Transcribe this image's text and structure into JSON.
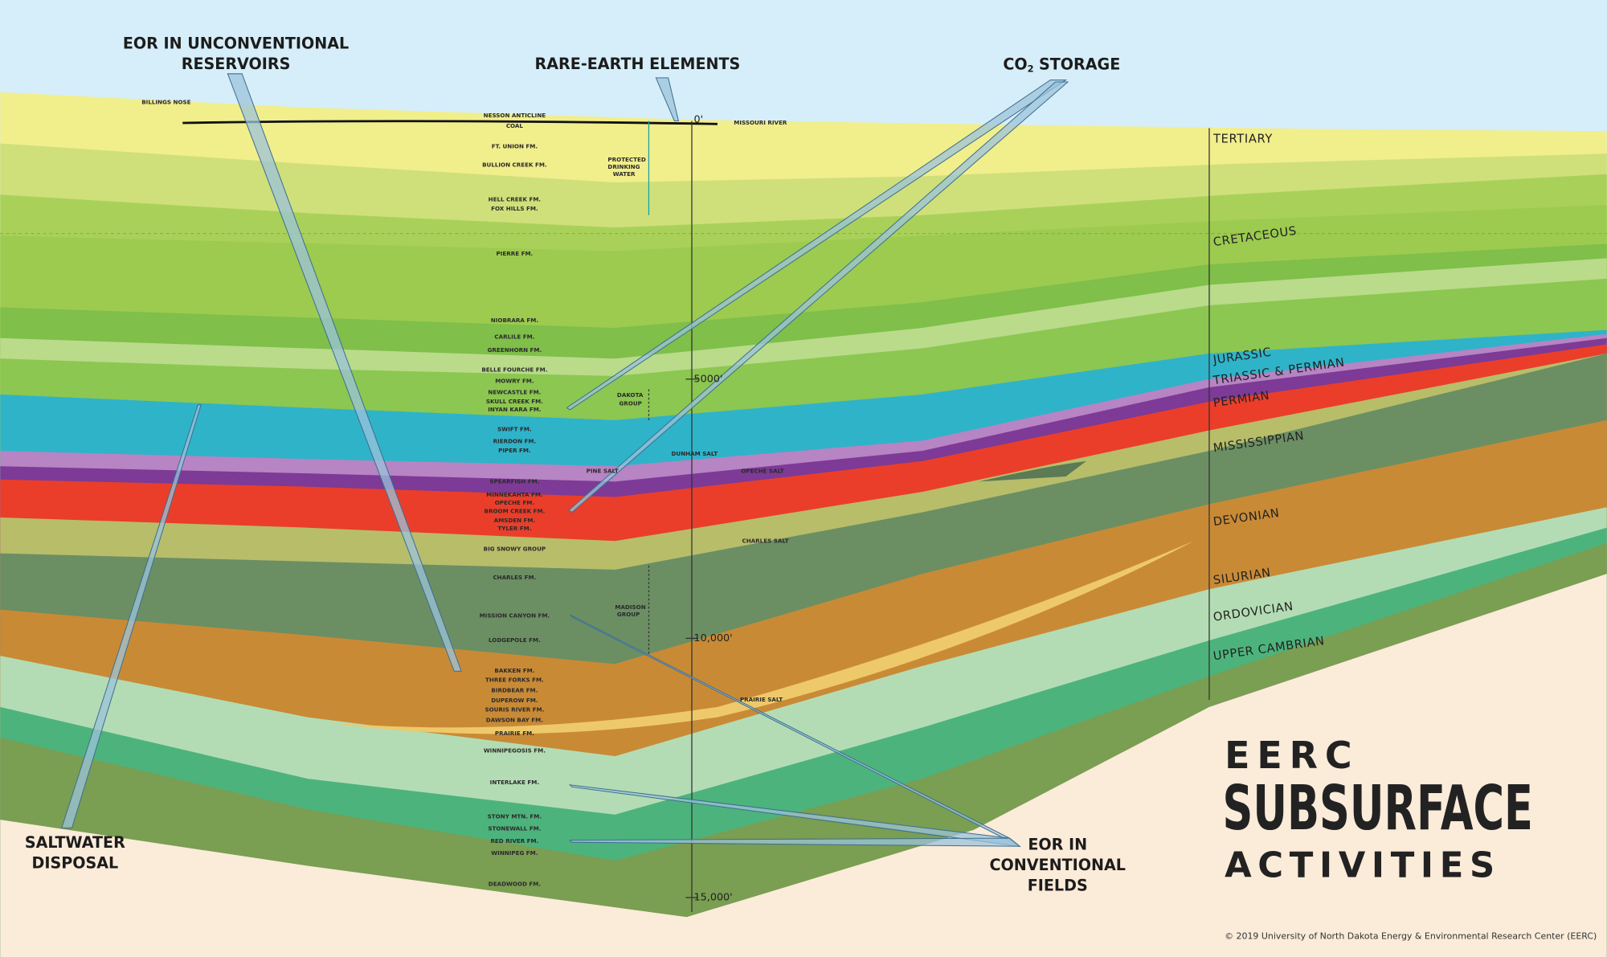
{
  "callouts": {
    "eor_unconventional": [
      "EOR IN UNCONVENTIONAL",
      "RESERVOIRS"
    ],
    "rare_earth": "RARE-EARTH ELEMENTS",
    "co2_storage": {
      "prefix": "CO",
      "subscript": "2",
      "suffix": "STORAGE"
    },
    "saltwater_disposal": [
      "SALTWATER",
      "DISPOSAL"
    ],
    "eor_conventional": [
      "EOR IN",
      "CONVENTIONAL",
      "FIELDS"
    ]
  },
  "formations": [
    "NESSON ANTICLINE",
    "COAL",
    "FT. UNION FM.",
    "BULLION CREEK FM.",
    "HELL CREEK FM.",
    "FOX HILLS FM.",
    "PIERRE FM.",
    "NIOBRARA FM.",
    "CARLILE FM.",
    "GREENHORN FM.",
    "BELLE FOURCHE FM.",
    "MOWRY FM.",
    "NEWCASTLE FM.",
    "SKULL CREEK FM.",
    "INYAN KARA FM.",
    "SWIFT FM.",
    "RIERDON FM.",
    "PIPER FM.",
    "SPEARFISH FM.",
    "MINNEKAHTA FM.",
    "OPECHE FM.",
    "BROOM CREEK FM.",
    "AMSDEN FM.",
    "TYLER FM.",
    "BIG SNOWY GROUP",
    "CHARLES FM.",
    "MISSION CANYON FM.",
    "LODGEPOLE FM.",
    "BAKKEN FM.",
    "THREE FORKS FM.",
    "BIRDBEAR FM.",
    "DUPEROW FM.",
    "SOURIS RIVER FM.",
    "DAWSON BAY FM.",
    "PRAIRIE FM.",
    "WINNIPEGOSIS FM.",
    "INTERLAKE FM.",
    "STONY MTN. FM.",
    "STONEWALL FM.",
    "RED RIVER FM.",
    "WINNIPEG FM.",
    "DEADWOOD FM."
  ],
  "features": {
    "billings_nose": "BILLINGS NOSE",
    "missouri_river": "MISSOURI RIVER",
    "protected_water": [
      "PROTECTED",
      "DRINKING",
      "WATER"
    ],
    "dakota_group": [
      "DAKOTA",
      "GROUP"
    ],
    "madison_group": [
      "MADISON",
      "GROUP"
    ],
    "pine_salt": "PINE SALT",
    "dunham_salt": "DUNHAM SALT",
    "opeche_salt": "OPECHE SALT",
    "charles_salt": "CHARLES SALT",
    "prairie_salt": "PRAIRIE SALT"
  },
  "depths": [
    "0'",
    "5000'",
    "10,000'",
    "15,000'"
  ],
  "periods": [
    "TERTIARY",
    "CRETACEOUS",
    "JURASSIC",
    "TRIASSIC & PERMIAN",
    "PERMIAN",
    "MISSISSIPPIAN",
    "DEVONIAN",
    "SILURIAN",
    "ORDOVICIAN",
    "UPPER CAMBRIAN"
  ],
  "title": {
    "line1": "EERC",
    "line2": "SUBSURFACE",
    "line3": "ACTIVITIES"
  },
  "copyright": "© 2019 University of North Dakota Energy & Environmental Research Center (EERC)"
}
